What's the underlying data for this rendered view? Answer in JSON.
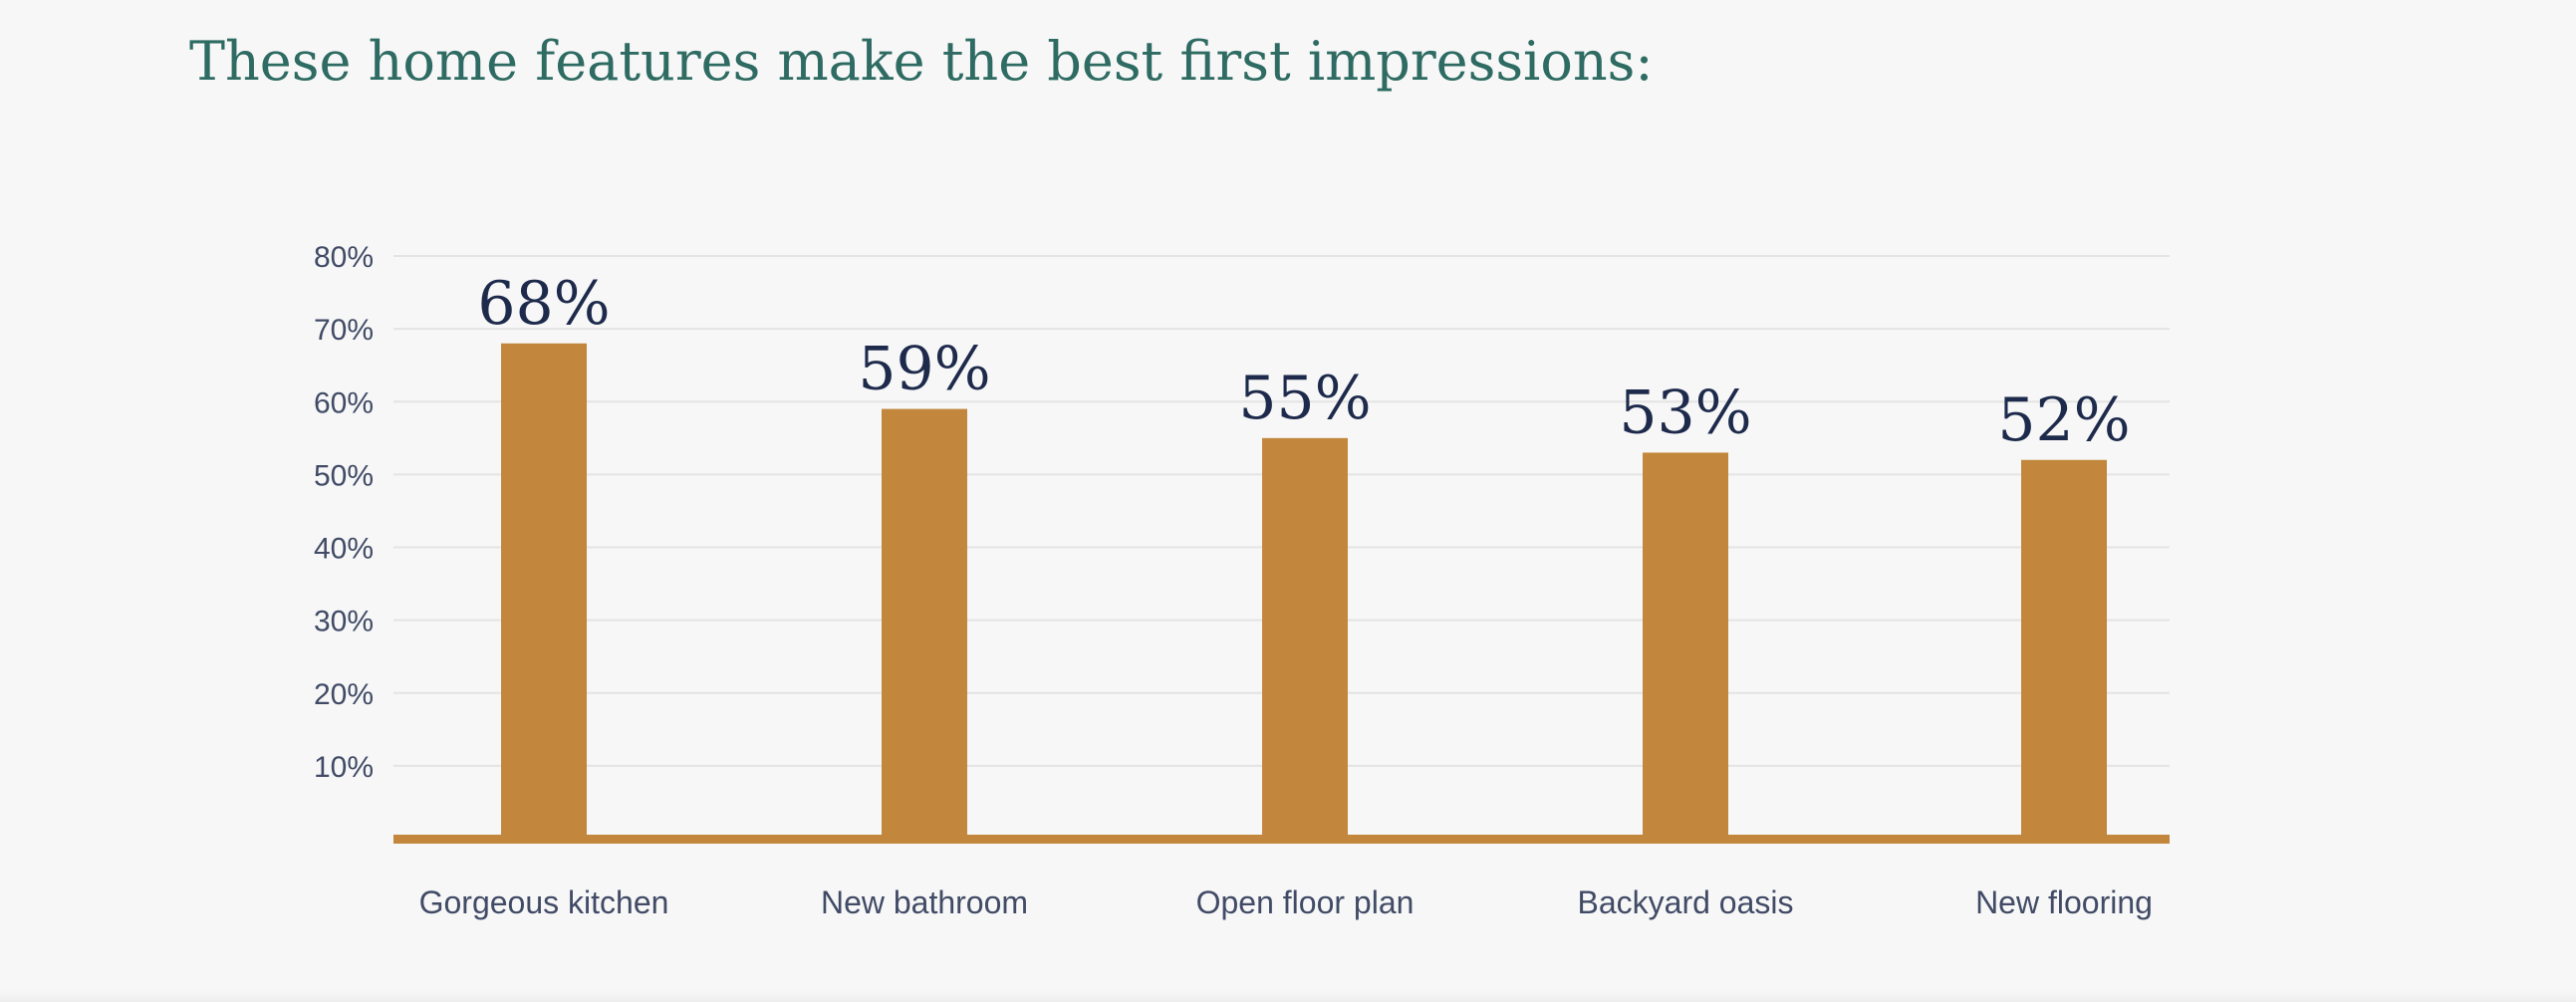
{
  "colors": {
    "title": "#2e6b62",
    "bar": "#c2873d",
    "baseline": "#c2873d",
    "value_label": "#1d2a4b",
    "axis_text": "#414b66",
    "grid": "#e4e4e4",
    "background": "#f7f7f7"
  },
  "chart_data": {
    "type": "bar",
    "title": "These home features make the best first impressions:",
    "categories": [
      "Gorgeous kitchen",
      "New bathroom",
      "Open floor plan",
      "Backyard oasis",
      "New flooring"
    ],
    "values": [
      68,
      59,
      55,
      53,
      52
    ],
    "value_labels": [
      "68%",
      "59%",
      "55%",
      "53%",
      "52%"
    ],
    "yticks": [
      10,
      20,
      30,
      40,
      50,
      60,
      70,
      80
    ],
    "ytick_labels": [
      "10%",
      "20%",
      "30%",
      "40%",
      "50%",
      "60%",
      "70%",
      "80%"
    ],
    "ylim": [
      0,
      80
    ],
    "xlabel": "",
    "ylabel": "",
    "grid": true,
    "legend": "none"
  }
}
